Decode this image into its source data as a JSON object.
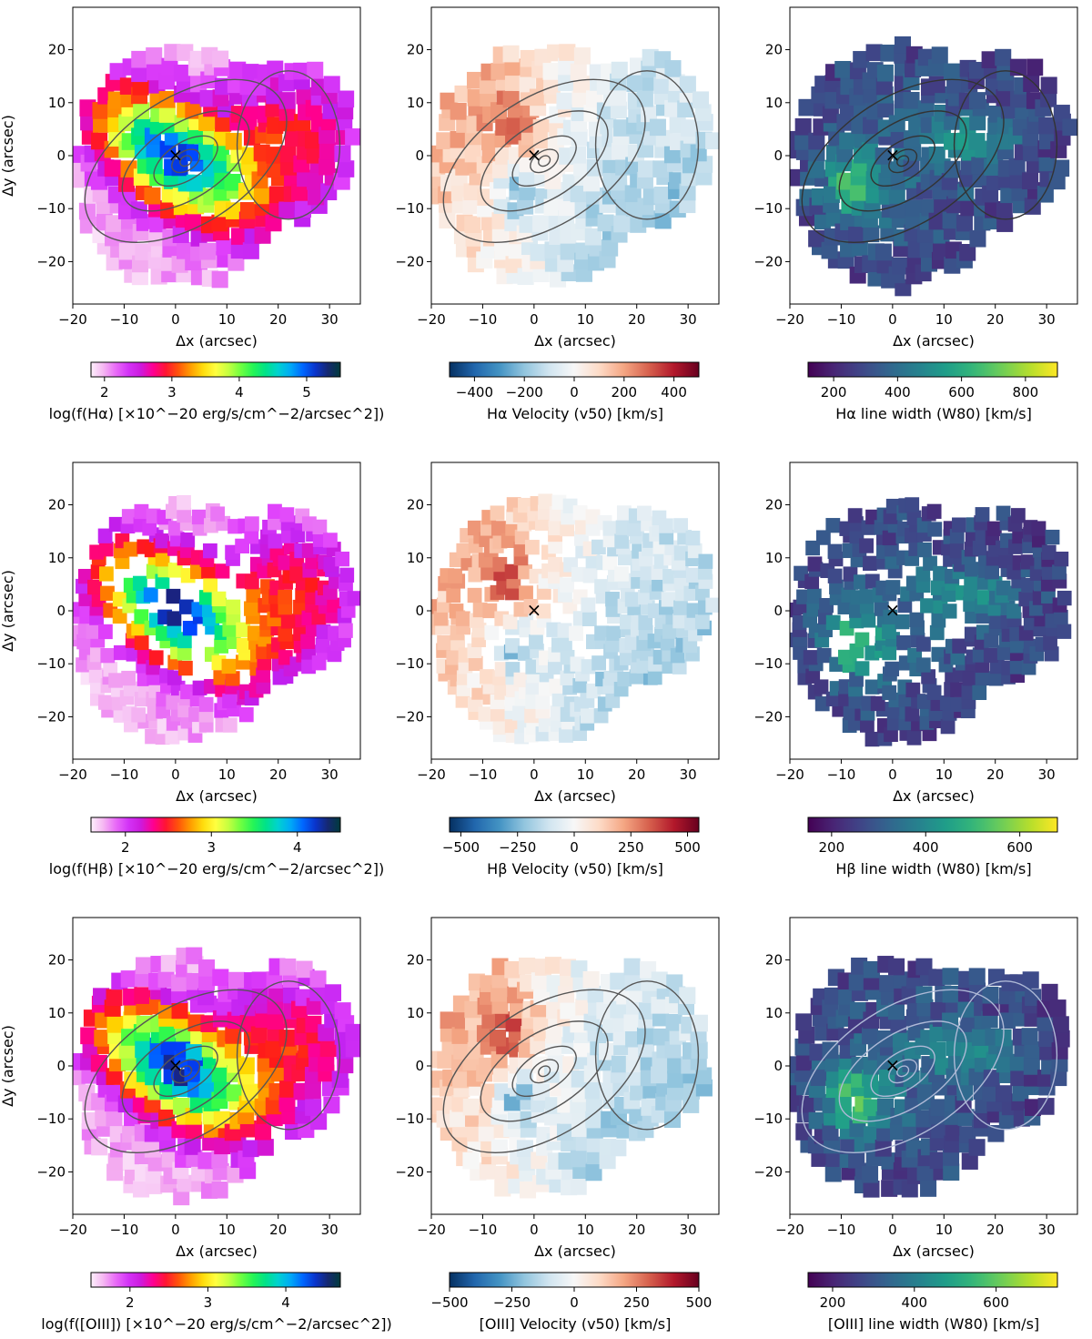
{
  "figure": {
    "description_rows": [
      "H-alpha",
      "H-beta",
      "[OIII]"
    ]
  },
  "chart_data": [
    {
      "type": "heatmap",
      "map": "flux",
      "colormap": "gist_ncar_r",
      "xlabel": "Δx (arcsec)",
      "ylabel": "Δy (arcsec)",
      "xlim": [
        -20,
        36
      ],
      "ylim": [
        -28,
        28
      ],
      "xticks": [
        "−20",
        "−10",
        "0",
        "10",
        "20",
        "30"
      ],
      "yticks": [
        "20",
        "10",
        "0",
        "−10",
        "−20"
      ],
      "cbar_label": "log(f(Hα) [×10^−20 erg/s/cm^−2/arcsec^2])",
      "cbar_range": [
        1.8,
        5.5
      ],
      "cbar_ticks": [
        "2",
        "3",
        "4",
        "5"
      ],
      "contours": true,
      "contour_color": "#555555",
      "marker": "×"
    },
    {
      "type": "heatmap",
      "map": "velocity",
      "colormap": "RdBu_r",
      "xlabel": "Δx (arcsec)",
      "ylabel": "",
      "xlim": [
        -20,
        36
      ],
      "ylim": [
        -28,
        28
      ],
      "xticks": [
        "−20",
        "−10",
        "0",
        "10",
        "20",
        "30"
      ],
      "yticks": [
        "20",
        "10",
        "0",
        "−10",
        "−20"
      ],
      "cbar_label": "Hα Velocity (v50) [km/s]",
      "cbar_range": [
        -500,
        500
      ],
      "cbar_ticks": [
        "−400",
        "−200",
        "0",
        "200",
        "400"
      ],
      "contours": true,
      "contour_color": "#555555",
      "marker": "×"
    },
    {
      "type": "heatmap",
      "map": "width",
      "colormap": "viridis",
      "xlabel": "Δx (arcsec)",
      "ylabel": "",
      "xlim": [
        -20,
        36
      ],
      "ylim": [
        -28,
        28
      ],
      "xticks": [
        "−20",
        "−10",
        "0",
        "10",
        "20",
        "30"
      ],
      "yticks": [
        "20",
        "10",
        "0",
        "−10",
        "−20"
      ],
      "cbar_label": "Hα line width (W80) [km/s]",
      "cbar_range": [
        120,
        900
      ],
      "cbar_ticks": [
        "200",
        "400",
        "600",
        "800"
      ],
      "contours": true,
      "contour_color": "#333333",
      "marker": "×"
    },
    {
      "type": "heatmap",
      "map": "flux",
      "colormap": "gist_ncar_r",
      "xlabel": "Δx (arcsec)",
      "ylabel": "Δy (arcsec)",
      "xlim": [
        -20,
        36
      ],
      "ylim": [
        -28,
        28
      ],
      "xticks": [
        "−20",
        "−10",
        "0",
        "10",
        "20",
        "30"
      ],
      "yticks": [
        "20",
        "10",
        "0",
        "−10",
        "−20"
      ],
      "cbar_label": "log(f(Hβ) [×10^−20 erg/s/cm^−2/arcsec^2])",
      "cbar_range": [
        1.6,
        4.5
      ],
      "cbar_ticks": [
        "2",
        "3",
        "4"
      ],
      "contours": false,
      "marker": ""
    },
    {
      "type": "heatmap",
      "map": "velocity",
      "colormap": "RdBu_r",
      "xlabel": "Δx (arcsec)",
      "ylabel": "",
      "xlim": [
        -20,
        36
      ],
      "ylim": [
        -28,
        28
      ],
      "xticks": [
        "−20",
        "−10",
        "0",
        "10",
        "20",
        "30"
      ],
      "yticks": [
        "20",
        "10",
        "0",
        "−10",
        "−20"
      ],
      "cbar_label": "Hβ Velocity (v50) [km/s]",
      "cbar_range": [
        -550,
        550
      ],
      "cbar_ticks": [
        "−500",
        "−250",
        "0",
        "250",
        "500"
      ],
      "contours": false,
      "marker": "×"
    },
    {
      "type": "heatmap",
      "map": "width",
      "colormap": "viridis",
      "xlabel": "Δx (arcsec)",
      "ylabel": "",
      "xlim": [
        -20,
        36
      ],
      "ylim": [
        -28,
        28
      ],
      "xticks": [
        "−20",
        "−10",
        "0",
        "10",
        "20",
        "30"
      ],
      "yticks": [
        "20",
        "10",
        "0",
        "−10",
        "−20"
      ],
      "cbar_label": "Hβ line width (W80) [km/s]",
      "cbar_range": [
        150,
        680
      ],
      "cbar_ticks": [
        "200",
        "400",
        "600"
      ],
      "contours": false,
      "marker": "×"
    },
    {
      "type": "heatmap",
      "map": "flux",
      "colormap": "gist_ncar_r",
      "xlabel": "Δx (arcsec)",
      "ylabel": "Δy (arcsec)",
      "xlim": [
        -20,
        36
      ],
      "ylim": [
        -28,
        28
      ],
      "xticks": [
        "−20",
        "−10",
        "0",
        "10",
        "20",
        "30"
      ],
      "yticks": [
        "20",
        "10",
        "0",
        "−10",
        "−20"
      ],
      "cbar_label": "log(f([OIII]) [×10^−20 erg/s/cm^−2/arcsec^2])",
      "cbar_range": [
        1.5,
        4.7
      ],
      "cbar_ticks": [
        "2",
        "3",
        "4"
      ],
      "contours": true,
      "contour_color": "#555555",
      "marker": "×"
    },
    {
      "type": "heatmap",
      "map": "velocity",
      "colormap": "RdBu_r",
      "xlabel": "Δx (arcsec)",
      "ylabel": "",
      "xlim": [
        -20,
        36
      ],
      "ylim": [
        -28,
        28
      ],
      "xticks": [
        "−20",
        "−10",
        "0",
        "10",
        "20",
        "30"
      ],
      "yticks": [
        "20",
        "10",
        "0",
        "−10",
        "−20"
      ],
      "cbar_label": "[OIII] Velocity (v50) [km/s]",
      "cbar_range": [
        -500,
        500
      ],
      "cbar_ticks": [
        "−500",
        "−250",
        "0",
        "250",
        "500"
      ],
      "contours": true,
      "contour_color": "#555555",
      "marker": ""
    },
    {
      "type": "heatmap",
      "map": "width",
      "colormap": "viridis",
      "xlabel": "Δx (arcsec)",
      "ylabel": "",
      "xlim": [
        -20,
        36
      ],
      "ylim": [
        -28,
        28
      ],
      "xticks": [
        "−20",
        "−10",
        "0",
        "10",
        "20",
        "30"
      ],
      "yticks": [
        "20",
        "10",
        "0",
        "−10",
        "−20"
      ],
      "cbar_label": "[OIII] line width (W80) [km/s]",
      "cbar_range": [
        140,
        750
      ],
      "cbar_ticks": [
        "200",
        "400",
        "600"
      ],
      "contours": true,
      "contour_color": "#aeb9d6",
      "marker": "×"
    }
  ]
}
